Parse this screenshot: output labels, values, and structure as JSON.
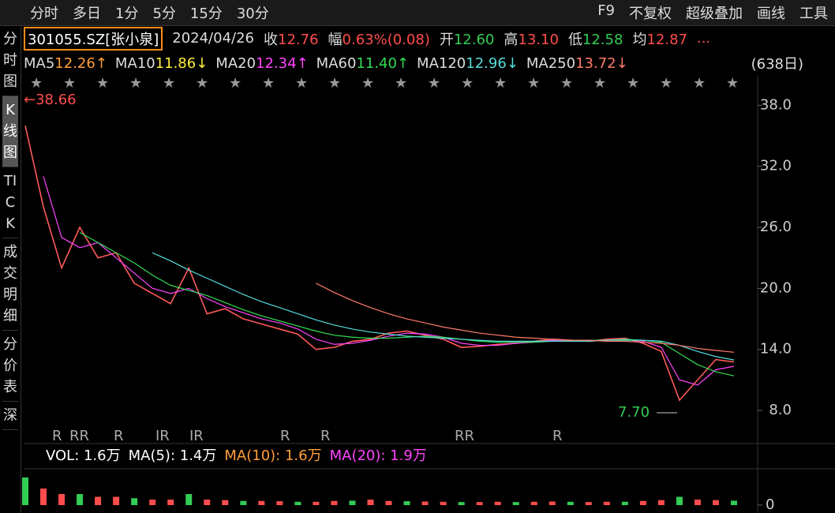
{
  "toolbar": {
    "tabs": [
      "分时",
      "多日",
      "1分",
      "5分",
      "15分",
      "30分"
    ],
    "right": [
      "F9",
      "不复权",
      "超级叠加",
      "画线",
      "工具"
    ]
  },
  "sidebar": [
    "分时图",
    "K线图",
    "TICK",
    "成交明细",
    "分价表",
    "深"
  ],
  "quote": {
    "symbol": "301055.SZ[张小泉]",
    "date": "2024/04/26",
    "items": [
      {
        "label": "收",
        "value": "12.76",
        "color": "#ff4d4d"
      },
      {
        "label": "幅",
        "value": "0.63%(0.08)",
        "color": "#ff4d4d"
      },
      {
        "label": "开",
        "value": "12.60",
        "color": "#33cc55"
      },
      {
        "label": "高",
        "value": "13.10",
        "color": "#ff4d4d"
      },
      {
        "label": "低",
        "value": "12.58",
        "color": "#33cc55"
      },
      {
        "label": "均",
        "value": "12.87",
        "color": "#ff4d4d"
      }
    ],
    "more": "..."
  },
  "ma_legend": [
    {
      "label": "MA5",
      "value": "12.26↑",
      "color": "#ff9f3a"
    },
    {
      "label": "MA10",
      "value": "11.86↓",
      "color": "#ffee33"
    },
    {
      "label": "MA20",
      "value": "12.34↑",
      "color": "#ff44ff"
    },
    {
      "label": "MA60",
      "value": "11.40↑",
      "color": "#33dd55"
    },
    {
      "label": "MA120",
      "value": "12.96↓",
      "color": "#55dddd"
    },
    {
      "label": "MA250",
      "value": "13.72↓",
      "color": "#ff7a6a"
    }
  ],
  "period": "(638日)",
  "chart_data": {
    "type": "line",
    "ylim": [
      4.9,
      40.9
    ],
    "yticks": [
      {
        "value": 8,
        "label": "8.0"
      },
      {
        "value": 14,
        "label": "14.0"
      },
      {
        "value": 20,
        "label": "20.0"
      },
      {
        "value": 26,
        "label": "26.0"
      },
      {
        "value": 32,
        "label": "32.0"
      },
      {
        "value": 38,
        "label": "38.0"
      }
    ],
    "series": [
      {
        "name": "K",
        "color": "#ff5a5a",
        "values": [
          36,
          28,
          22,
          26,
          23,
          23.5,
          20.5,
          19.5,
          18.5,
          22,
          17.5,
          18,
          17,
          16.5,
          16,
          15.5,
          14,
          14.2,
          14.8,
          15,
          15.6,
          15.8,
          15.4,
          15,
          14.2,
          14.3,
          14.5,
          14.6,
          14.8,
          15,
          14.9,
          14.8,
          15,
          15.1,
          14.6,
          13.8,
          9,
          11,
          13,
          12.76
        ]
      },
      {
        "name": "MA20",
        "color": "#ff44ff",
        "values": [
          null,
          31,
          25,
          24,
          24.5,
          23,
          21.5,
          20,
          19.5,
          20,
          19,
          18.2,
          17.6,
          17,
          16.6,
          16,
          15,
          14.5,
          14.6,
          14.9,
          15.3,
          15.6,
          15.5,
          15.2,
          14.6,
          14.4,
          14.4,
          14.6,
          14.7,
          14.9,
          14.9,
          14.8,
          14.9,
          15,
          14.8,
          14.2,
          11,
          10.5,
          12,
          12.34
        ]
      },
      {
        "name": "MA60",
        "color": "#33dd55",
        "values": [
          null,
          null,
          null,
          25.5,
          24.5,
          23.5,
          22.5,
          21.3,
          20.3,
          19.8,
          19.3,
          18.6,
          17.9,
          17.3,
          16.8,
          16.3,
          15.8,
          15.4,
          15.2,
          15.1,
          15.1,
          15.2,
          15.3,
          15.2,
          15,
          14.8,
          14.7,
          14.7,
          14.7,
          14.8,
          14.8,
          14.9,
          14.9,
          15,
          14.9,
          14.7,
          13.6,
          12.5,
          11.8,
          11.4
        ]
      },
      {
        "name": "MA120",
        "color": "#55dddd",
        "values": [
          null,
          null,
          null,
          null,
          null,
          null,
          null,
          23.5,
          22.7,
          21.8,
          21,
          20.2,
          19.4,
          18.7,
          18.1,
          17.5,
          16.9,
          16.4,
          16,
          15.7,
          15.5,
          15.3,
          15.2,
          15.1,
          15,
          14.9,
          14.8,
          14.8,
          14.8,
          14.8,
          14.8,
          14.8,
          14.9,
          14.9,
          14.9,
          14.8,
          14.4,
          13.8,
          13.3,
          12.96
        ]
      },
      {
        "name": "MA250",
        "color": "#ff7a6a",
        "values": [
          null,
          null,
          null,
          null,
          null,
          null,
          null,
          null,
          null,
          null,
          null,
          null,
          null,
          null,
          null,
          null,
          20.5,
          19.6,
          18.8,
          18.1,
          17.5,
          17,
          16.6,
          16.2,
          15.9,
          15.6,
          15.4,
          15.2,
          15.1,
          15,
          14.9,
          14.9,
          14.8,
          14.8,
          14.7,
          14.6,
          14.4,
          14.1,
          13.9,
          13.72
        ]
      }
    ],
    "annotations": [
      "←38.66",
      "7.70"
    ],
    "r_markers": [
      "R",
      "RR",
      "R",
      "IR",
      "IR",
      "R",
      "R",
      "RR",
      "R"
    ]
  },
  "volume": {
    "type": "bar",
    "legend": [
      "VOL: 1.6万",
      "MA(5): 1.4万",
      "MA(10): 1.6万",
      "MA(20): 1.9万"
    ],
    "ylim": [
      0,
      12
    ],
    "yticks": [
      0
    ],
    "values": [
      10,
      6,
      4,
      4,
      3,
      3,
      2.5,
      2,
      2,
      4,
      2,
      1.8,
      1.5,
      1.5,
      1.4,
      1.2,
      1.2,
      1.5,
      1.6,
      2,
      1.5,
      1.4,
      1.3,
      1.2,
      1.1,
      1.1,
      1.2,
      1.1,
      1.2,
      1.3,
      1.2,
      1.1,
      1.2,
      1.2,
      1.5,
      1.8,
      3,
      2,
      1.8,
      1.6
    ]
  }
}
